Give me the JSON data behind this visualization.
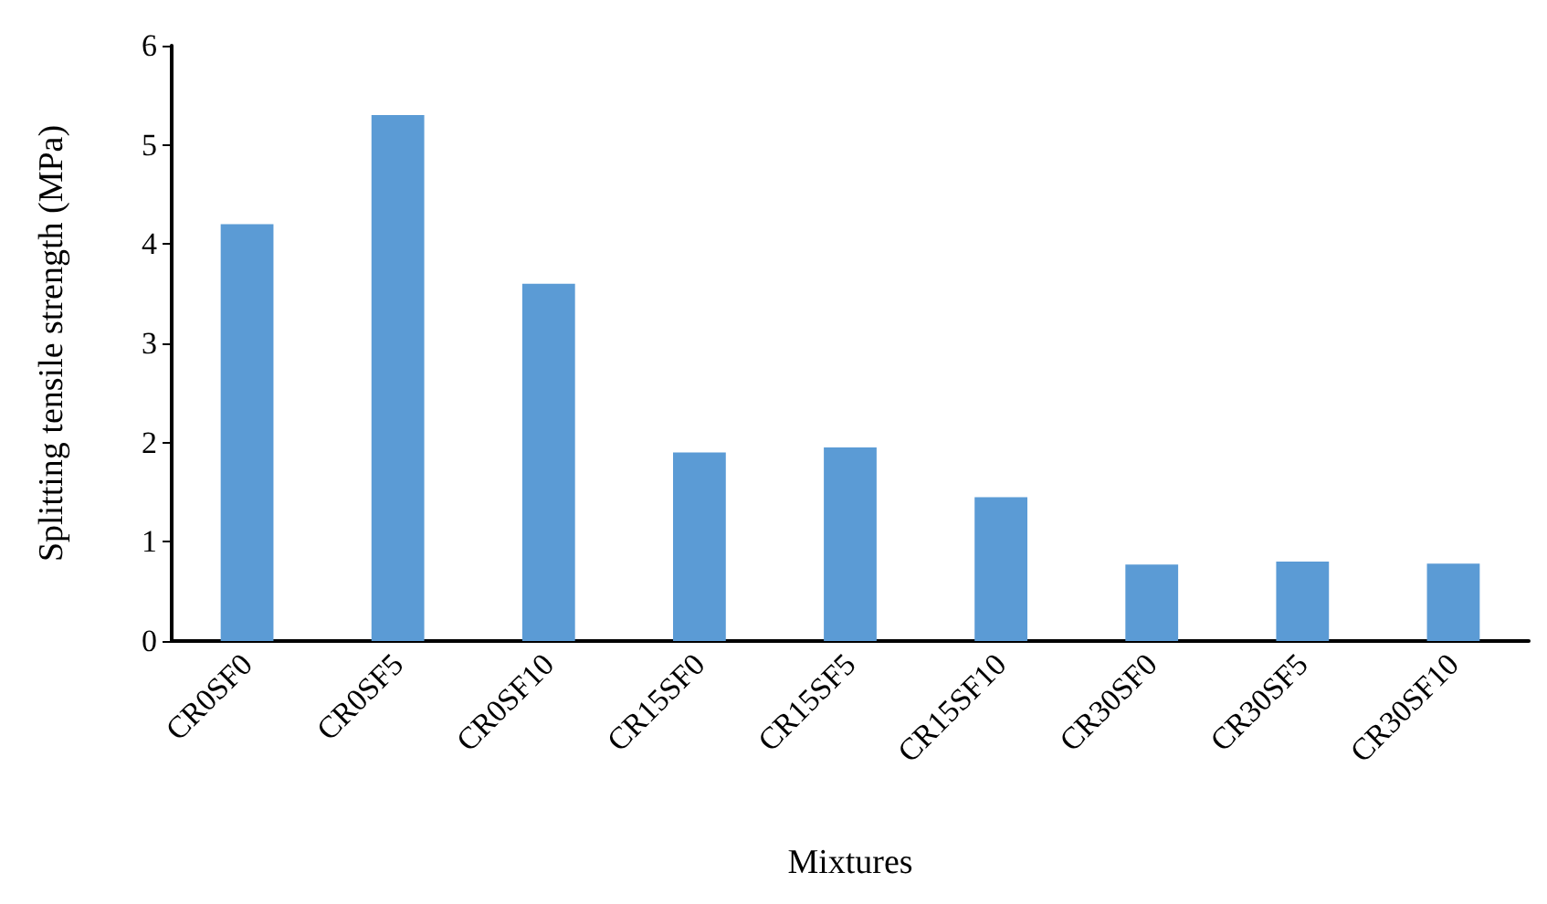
{
  "chart_data": {
    "type": "bar",
    "xlabel": "Mixtures",
    "ylabel": "Splitting tensile strength (MPa)",
    "categories": [
      "CR0SF0",
      "CR0SF5",
      "CR0SF10",
      "CR15SF0",
      "CR15SF5",
      "CR15SF10",
      "CR30SF0",
      "CR30SF5",
      "CR30SF10"
    ],
    "values": [
      4.2,
      5.3,
      3.6,
      1.9,
      1.95,
      1.45,
      0.77,
      0.8,
      0.78
    ],
    "color": "#5b9bd5",
    "ylim": [
      0,
      6
    ],
    "yticks": [
      0,
      1,
      2,
      3,
      4,
      5,
      6
    ],
    "grid": false
  }
}
